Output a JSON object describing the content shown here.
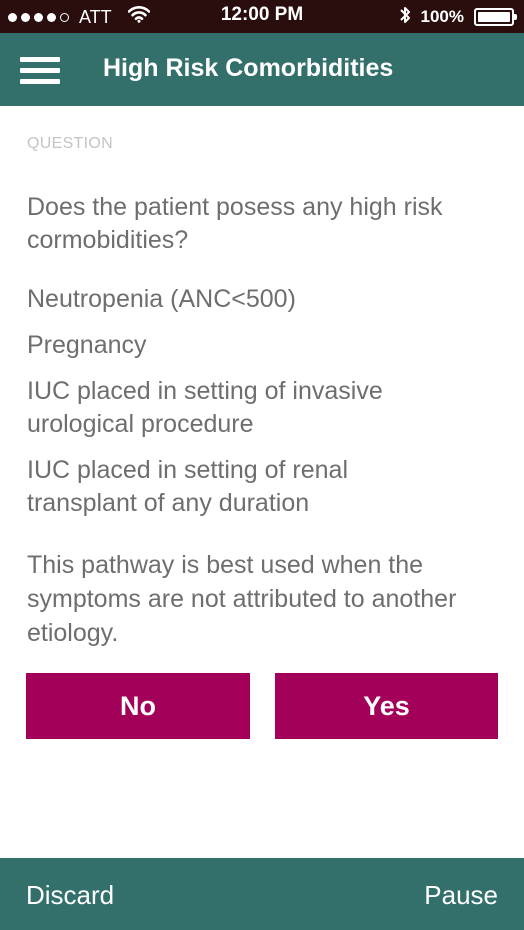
{
  "status_bar": {
    "carrier": "ATT",
    "signal_dots_filled": 4,
    "signal_dots_total": 5,
    "wifi_icon": "wifi-icon",
    "time": "12:00 PM",
    "bluetooth_icon": "bluetooth-icon",
    "battery_percent": "100%",
    "battery_level": 1.0
  },
  "app_bar": {
    "menu_icon": "hamburger-menu-icon",
    "title": "High Risk Comorbidities"
  },
  "main": {
    "section_label": "QUESTION",
    "question": "Does the patient posess any high risk cormobidities?",
    "items": [
      "Neutropenia (ANC<500)",
      "Pregnancy",
      "IUC placed in setting of invasive urological procedure",
      "IUC placed in setting of renal transplant of any duration"
    ],
    "note": "This pathway is best used when the symptoms are not attributed to another etiology.",
    "buttons": {
      "no": "No",
      "yes": "Yes"
    }
  },
  "bottom_bar": {
    "discard": "Discard",
    "pause": "Pause"
  },
  "colors": {
    "status_bar_bg": "#2a0e0e",
    "header_bg": "#33706c",
    "button_bg": "#a3005a",
    "body_text": "#6e6e6e",
    "label_text": "#c4c4c4"
  }
}
